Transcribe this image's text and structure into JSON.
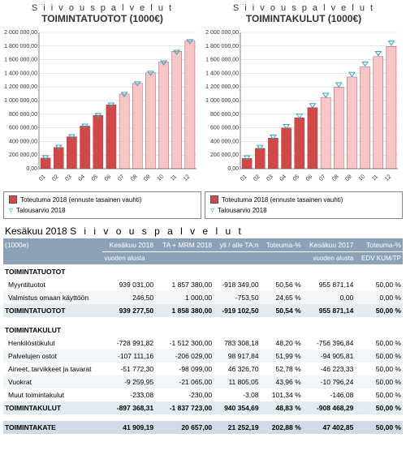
{
  "charts": [
    {
      "title": "S i i v o u s p a l v e l u t",
      "subtitle": "TOIMINTATUOTOT (1000€)",
      "ylim": [
        0,
        2000000
      ],
      "ytick_step": 200000,
      "categories": [
        "01",
        "02",
        "03",
        "04",
        "05",
        "06",
        "07",
        "08",
        "09",
        "10",
        "11",
        "12"
      ],
      "bar_colors_top6": "#d14848",
      "bar_colors_rest": "#f6c6c6",
      "budget_color": "#2fa3c3",
      "bars": [
        156000,
        313000,
        469000,
        626000,
        783000,
        939000,
        1096000,
        1252000,
        1409000,
        1566000,
        1723000,
        1880000
      ],
      "budget": [
        155000,
        310000,
        465000,
        619000,
        774000,
        929000,
        1084000,
        1239000,
        1394000,
        1548000,
        1703000,
        1858000
      ]
    },
    {
      "title": "S i i v o u s p a l v e l u t",
      "subtitle": "TOIMINTAKULUT (1000€)",
      "ylim": [
        0,
        2000000
      ],
      "ytick_step": 200000,
      "categories": [
        "01",
        "02",
        "03",
        "04",
        "05",
        "06",
        "07",
        "08",
        "09",
        "10",
        "11",
        "12"
      ],
      "bar_colors_top6": "#d14848",
      "bar_colors_rest": "#f6c6c6",
      "budget_color": "#2fa3c3",
      "bars": [
        150000,
        299000,
        449000,
        598000,
        748000,
        897000,
        1047000,
        1196000,
        1346000,
        1495000,
        1645000,
        1795000
      ],
      "budget": [
        153000,
        306000,
        459000,
        613000,
        766000,
        919000,
        1072000,
        1225000,
        1378000,
        1531000,
        1685000,
        1838000
      ]
    }
  ],
  "legend": {
    "actual": "Toteutuma 2018 (ennuste tasainen vauhti)",
    "budget": "Talousarvio 2018"
  },
  "table": {
    "title_prefix": "Kesäkuu 2018 ",
    "title_suffix": "S i i v o u s p a l v e l u t",
    "unit": "(1000e)",
    "columns_row1": [
      "Kesäkuu 2018",
      "TA + MRM 2018",
      "yli / alle TA:n",
      "Toteuma-%",
      "Kesäkuu 2017",
      "Toteuma-%"
    ],
    "columns_row2": [
      "vuoden alusta",
      "",
      "",
      "",
      "vuoden alusta",
      "EDV KUM/TP"
    ],
    "sections": [
      {
        "caption": "TOIMINTATUOTOT",
        "rows": [
          {
            "label": "Myyntituotot",
            "c": [
              "939 031,00",
              "1 857 380,00",
              "-918 349,00",
              "50,56 %",
              "955 871,14",
              "50,00 %"
            ]
          },
          {
            "label": "Valmistus omaan käyttöön",
            "c": [
              "246,50",
              "1 000,00",
              "-753,50",
              "24,65 %",
              "0,00",
              "0,00 %"
            ]
          }
        ],
        "total": {
          "label": "TOIMINTATUOTOT",
          "c": [
            "939 277,50",
            "1 858 380,00",
            "-919 102,50",
            "50,54 %",
            "955 871,14",
            "50,00 %"
          ]
        }
      },
      {
        "caption": "TOIMINTAKULUT",
        "rows": [
          {
            "label": "Henkilöstökulut",
            "c": [
              "-728 991,82",
              "-1 512 300,00",
              "783 308,18",
              "48,20 %",
              "-756 396,84",
              "50,00 %"
            ]
          },
          {
            "label": "Palvelujen ostot",
            "c": [
              "-107 111,16",
              "-206 029,00",
              "98 917,84",
              "51,99 %",
              "-94 905,81",
              "50,00 %"
            ]
          },
          {
            "label": "Aineet, tarvikkeet ja tavarat",
            "c": [
              "-51 772,30",
              "-98 099,00",
              "46 326,70",
              "52,78 %",
              "-46 223,33",
              "50,00 %"
            ]
          },
          {
            "label": "Vuokrat",
            "c": [
              "-9 259,95",
              "-21 065,00",
              "11 805,05",
              "43,96 %",
              "-10 796,24",
              "50,00 %"
            ]
          },
          {
            "label": "Muut toimintakulut",
            "c": [
              "-233,08",
              "-230,00",
              "-3,08",
              "101,34 %",
              "-146,08",
              "50,00 %"
            ]
          }
        ],
        "total": {
          "label": "TOIMINTAKULUT",
          "c": [
            "-897 368,31",
            "-1 837 723,00",
            "940 354,69",
            "48,83 %",
            "-908 468,29",
            "50,00 %"
          ]
        }
      }
    ],
    "grand": {
      "label": "TOIMINTAKATE",
      "c": [
        "41 909,19",
        "20 657,00",
        "21 252,19",
        "202,88 %",
        "47 402,85",
        "50,00 %"
      ]
    }
  },
  "style": {
    "grid_color": "#cccccc",
    "axis_fontsize": 7
  }
}
